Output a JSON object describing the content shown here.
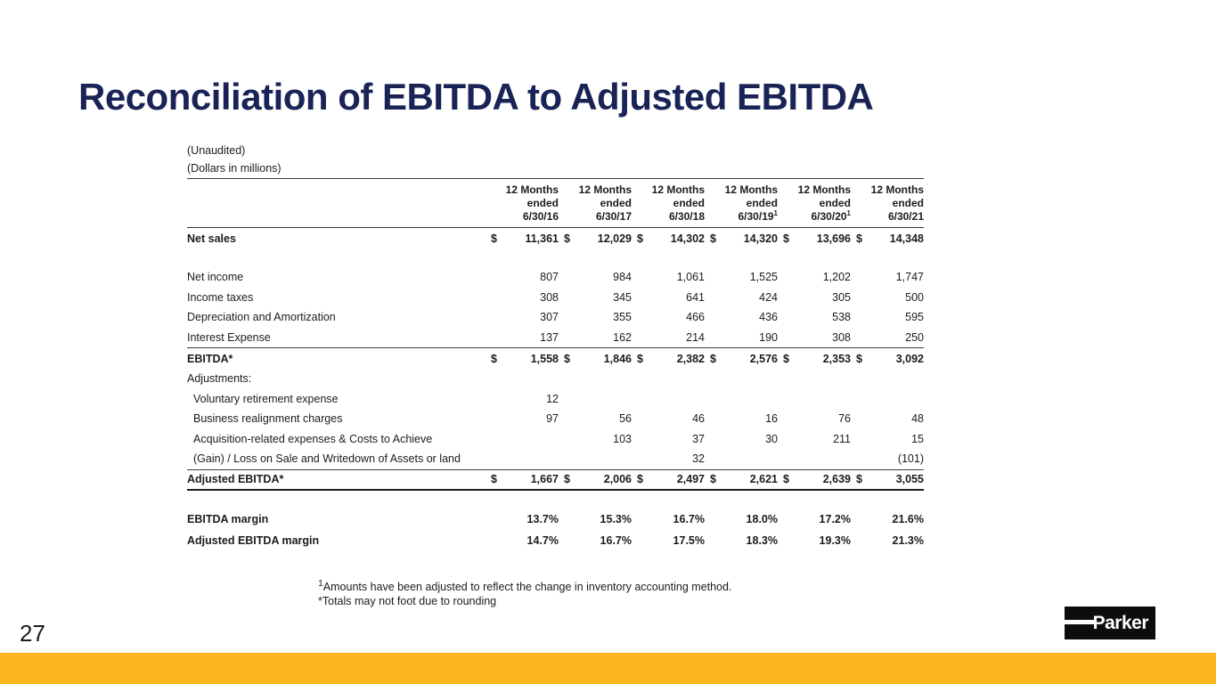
{
  "slide": {
    "title": "Reconciliation of EBITDA to Adjusted EBITDA",
    "page_number": "27",
    "logo_text": "Parker",
    "title_color": "#1A2355",
    "accent_bar_color": "#FDB71E"
  },
  "table": {
    "unaudited_label": "(Unaudited)",
    "dollars_label": "(Dollars in millions)",
    "columns": [
      {
        "period": "12 Months",
        "ended": "ended",
        "date": "6/30/16",
        "sup": ""
      },
      {
        "period": "12 Months",
        "ended": "ended",
        "date": "6/30/17",
        "sup": ""
      },
      {
        "period": "12 Months",
        "ended": "ended",
        "date": "6/30/18",
        "sup": ""
      },
      {
        "period": "12 Months",
        "ended": "ended",
        "date": "6/30/19",
        "sup": "1"
      },
      {
        "period": "12 Months",
        "ended": "ended",
        "date": "6/30/20",
        "sup": "1"
      },
      {
        "period": "12 Months",
        "ended": "ended",
        "date": "6/30/21",
        "sup": ""
      }
    ],
    "rows": [
      {
        "label": "Net sales",
        "bold": true,
        "dollar": true,
        "spacer_after": true,
        "values": [
          "11,361",
          "12,029",
          "14,302",
          "14,320",
          "13,696",
          "14,348"
        ]
      },
      {
        "label": "Net income",
        "values": [
          "807",
          "984",
          "1,061",
          "1,525",
          "1,202",
          "1,747"
        ]
      },
      {
        "label": "Income taxes",
        "values": [
          "308",
          "345",
          "641",
          "424",
          "305",
          "500"
        ]
      },
      {
        "label": "Depreciation and Amortization",
        "values": [
          "307",
          "355",
          "466",
          "436",
          "538",
          "595"
        ]
      },
      {
        "label": "Interest Expense",
        "values": [
          "137",
          "162",
          "214",
          "190",
          "308",
          "250"
        ]
      },
      {
        "label": "EBITDA*",
        "bold": true,
        "dollar": true,
        "rule_above": true,
        "values": [
          "1,558",
          "1,846",
          "2,382",
          "2,576",
          "2,353",
          "3,092"
        ]
      },
      {
        "label": "Adjustments:",
        "values": [
          "",
          "",
          "",
          "",
          "",
          ""
        ]
      },
      {
        "label": "Voluntary retirement expense",
        "indent": true,
        "values": [
          "12",
          "",
          "",
          "",
          "",
          ""
        ]
      },
      {
        "label": "Business realignment charges",
        "indent": true,
        "values": [
          "97",
          "56",
          "46",
          "16",
          "76",
          "48"
        ]
      },
      {
        "label": "Acquisition-related expenses & Costs to Achieve",
        "indent": true,
        "values": [
          "",
          "103",
          "37",
          "30",
          "211",
          "15"
        ]
      },
      {
        "label": "(Gain) / Loss on Sale and Writedown of Assets or land",
        "indent": true,
        "values": [
          "",
          "",
          "32",
          "",
          "",
          "(101)"
        ]
      },
      {
        "label": "Adjusted EBITDA*",
        "bold": true,
        "dollar": true,
        "rule_above": true,
        "rule_below_double": true,
        "spacer_after": true,
        "values": [
          "1,667",
          "2,006",
          "2,497",
          "2,621",
          "2,639",
          "3,055"
        ]
      },
      {
        "label": "EBITDA margin",
        "bold": true,
        "values": [
          "13.7%",
          "15.3%",
          "16.7%",
          "18.0%",
          "17.2%",
          "21.6%"
        ]
      },
      {
        "label": "Adjusted EBITDA margin",
        "bold": true,
        "values": [
          "14.7%",
          "16.7%",
          "17.5%",
          "18.3%",
          "19.3%",
          "21.3%"
        ]
      }
    ]
  },
  "footnotes": {
    "sup": "1",
    "line1": "Amounts have been adjusted to reflect the change in inventory accounting method.",
    "line2": "*Totals may not foot due to rounding"
  }
}
